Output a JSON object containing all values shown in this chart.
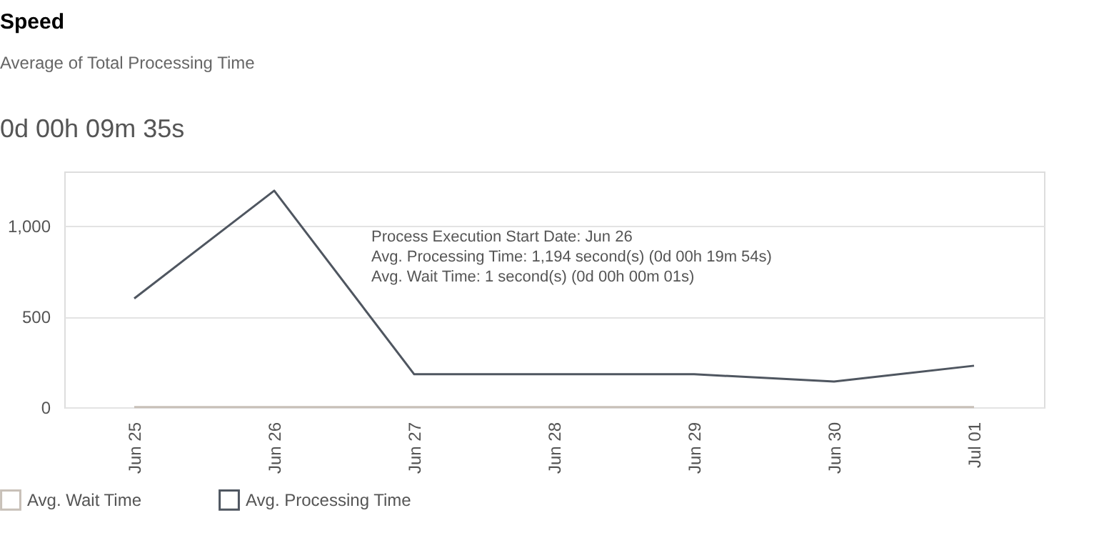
{
  "chart_data": {
    "type": "line",
    "title": "Speed",
    "subtitle": "Average of Total Processing Time",
    "categories": [
      "Jun 25",
      "Jun 26",
      "Jun 27",
      "Jun 28",
      "Jun 29",
      "Jun 30",
      "Jul 01"
    ],
    "series": [
      {
        "name": "Avg. Wait Time",
        "color": "#c8c0b8",
        "values": [
          1,
          1,
          1,
          1,
          1,
          1,
          1
        ]
      },
      {
        "name": "Avg. Processing Time",
        "color": "#4f5660",
        "values": [
          600,
          1194,
          182,
          182,
          182,
          142,
          229
        ]
      }
    ],
    "ylim": [
      0,
      1300
    ],
    "yticks": [
      0,
      500,
      {
        "value": 1000,
        "label": "1,000"
      }
    ],
    "grid": "y",
    "legend": "bottom left",
    "marker": "none",
    "line_style": "solid",
    "annotations": [
      "0d 00h 09m 35s",
      "Process Execution Start Date: Jun 26",
      "Avg. Processing Time: 1,194 second(s) (0d 00h 19m 54s)",
      "Avg. Wait Time: 1 second(s) (0d 00h 00m 01s)"
    ]
  }
}
